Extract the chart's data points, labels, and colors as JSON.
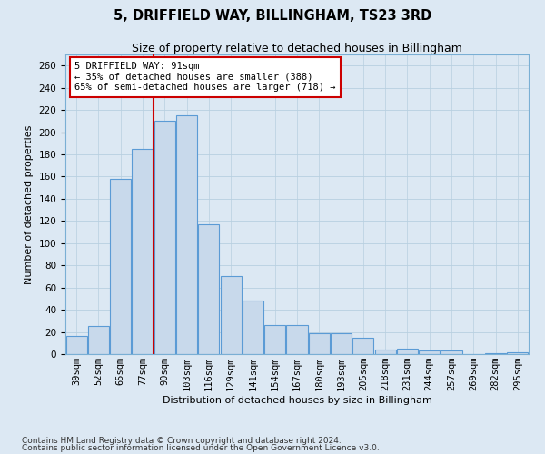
{
  "title": "5, DRIFFIELD WAY, BILLINGHAM, TS23 3RD",
  "subtitle": "Size of property relative to detached houses in Billingham",
  "xlabel": "Distribution of detached houses by size in Billingham",
  "ylabel": "Number of detached properties",
  "footer_line1": "Contains HM Land Registry data © Crown copyright and database right 2024.",
  "footer_line2": "Contains public sector information licensed under the Open Government Licence v3.0.",
  "categories": [
    "39sqm",
    "52sqm",
    "65sqm",
    "77sqm",
    "90sqm",
    "103sqm",
    "116sqm",
    "129sqm",
    "141sqm",
    "154sqm",
    "167sqm",
    "180sqm",
    "193sqm",
    "205sqm",
    "218sqm",
    "231sqm",
    "244sqm",
    "257sqm",
    "269sqm",
    "282sqm",
    "295sqm"
  ],
  "values": [
    16,
    25,
    158,
    185,
    210,
    215,
    117,
    70,
    48,
    26,
    26,
    19,
    19,
    15,
    4,
    5,
    3,
    3,
    0,
    1,
    2
  ],
  "bar_color": "#c8d9eb",
  "bar_edge_color": "#5b9bd5",
  "vline_color": "#cc0000",
  "vline_index": 4,
  "annotation_text": "5 DRIFFIELD WAY: 91sqm\n← 35% of detached houses are smaller (388)\n65% of semi-detached houses are larger (718) →",
  "ylim_max": 270,
  "ytick_step": 20,
  "grid_color": "#b8cfe0",
  "background_color": "#dce8f3",
  "title_fontsize": 10.5,
  "subtitle_fontsize": 9,
  "axis_label_fontsize": 8,
  "tick_fontsize": 7.5,
  "footer_fontsize": 6.5,
  "annot_fontsize": 7.5
}
